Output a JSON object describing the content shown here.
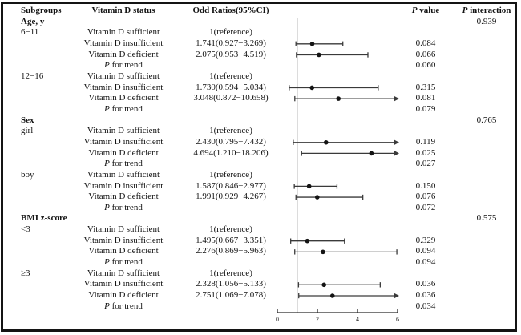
{
  "figure": {
    "columns": {
      "subgroups": "Subgroups",
      "status": "Vitamin D status",
      "odds_ratio": "Odd Ratios(95%CI)",
      "p_value": "P value",
      "p_interaction": "P interaction"
    },
    "rows": [
      {
        "subgroup": "Age, y",
        "group_header": true,
        "p_interaction": "0.939"
      },
      {
        "subgroup": "6−11",
        "status": "Vitamin D sufficient",
        "or_text": "1(reference)"
      },
      {
        "status": "Vitamin D insufficient",
        "or_text": "1.741(0.927−3.269)",
        "p_value": "0.084",
        "ci": {
          "or": 1.741,
          "lo": 0.927,
          "hi": 3.269,
          "arrow": false
        }
      },
      {
        "status": "Vitamin D deficient",
        "or_text": "2.075(0.953−4.519)",
        "p_value": "0.066",
        "ci": {
          "or": 2.075,
          "lo": 0.953,
          "hi": 4.519,
          "arrow": false
        }
      },
      {
        "status": "P for trend",
        "trend": true,
        "p_value": "0.060"
      },
      {
        "subgroup": "12−16",
        "status": "Vitamin D sufficient",
        "or_text": "1(reference)"
      },
      {
        "status": "Vitamin D insufficient",
        "or_text": "1.730(0.594−5.034)",
        "p_value": "0.315",
        "ci": {
          "or": 1.73,
          "lo": 0.594,
          "hi": 5.034,
          "arrow": false
        }
      },
      {
        "status": "Vitamin D deficient",
        "or_text": "3.048(0.872−10.658)",
        "p_value": "0.081",
        "ci": {
          "or": 3.048,
          "lo": 0.872,
          "hi": 10.658,
          "arrow": true
        }
      },
      {
        "status": "P for trend",
        "trend": true,
        "p_value": "0.079"
      },
      {
        "subgroup": "Sex",
        "group_header": true,
        "p_interaction": "0.765"
      },
      {
        "subgroup": "girl",
        "status": "Vitamin D sufficient",
        "or_text": "1(reference)"
      },
      {
        "status": "Vitamin D insufficient",
        "or_text": "2.430(0.795−7.432)",
        "p_value": "0.119",
        "ci": {
          "or": 2.43,
          "lo": 0.795,
          "hi": 7.432,
          "arrow": true
        }
      },
      {
        "status": "Vitamin D deficient",
        "or_text": "4.694(1.210−18.206)",
        "p_value": "0.025",
        "ci": {
          "or": 4.694,
          "lo": 1.21,
          "hi": 18.206,
          "arrow": true
        }
      },
      {
        "status": "P for trend",
        "trend": true,
        "p_value": "0.027"
      },
      {
        "subgroup": "boy",
        "status": "Vitamin D sufficient",
        "or_text": "1(reference)"
      },
      {
        "status": "Vitamin D insufficient",
        "or_text": "1.587(0.846−2.977)",
        "p_value": "0.150",
        "ci": {
          "or": 1.587,
          "lo": 0.846,
          "hi": 2.977,
          "arrow": false
        }
      },
      {
        "status": "Vitamin D deficient",
        "or_text": "1.991(0.929−4.267)",
        "p_value": "0.076",
        "ci": {
          "or": 1.991,
          "lo": 0.929,
          "hi": 4.267,
          "arrow": false
        }
      },
      {
        "status": "P for trend",
        "trend": true,
        "p_value": "0.072"
      },
      {
        "subgroup": "BMI z-score",
        "group_header": true,
        "p_interaction": "0.575"
      },
      {
        "subgroup": "<3",
        "status": "Vitamin D sufficient",
        "or_text": "1(reference)"
      },
      {
        "status": "Vitamin D insufficient",
        "or_text": "1.495(0.667−3.351)",
        "p_value": "0.329",
        "ci": {
          "or": 1.495,
          "lo": 0.667,
          "hi": 3.351,
          "arrow": false
        }
      },
      {
        "status": "Vitamin D deficient",
        "or_text": "2.276(0.869−5.963)",
        "p_value": "0.094",
        "ci": {
          "or": 2.276,
          "lo": 0.869,
          "hi": 5.963,
          "arrow": false
        }
      },
      {
        "status": "P for trend",
        "trend": true,
        "p_value": "0.094"
      },
      {
        "subgroup": "≥3",
        "status": "Vitamin D sufficient",
        "or_text": "1(reference)"
      },
      {
        "status": "Vitamin D insufficient",
        "or_text": "2.328(1.056−5.133)",
        "p_value": "0.036",
        "ci": {
          "or": 2.328,
          "lo": 1.056,
          "hi": 5.133,
          "arrow": false
        }
      },
      {
        "status": "Vitamin D deficient",
        "or_text": "2.751(1.069−7.078)",
        "p_value": "0.036",
        "ci": {
          "or": 2.751,
          "lo": 1.069,
          "hi": 7.078,
          "arrow": true
        }
      },
      {
        "status": "P for trend",
        "trend": true,
        "p_value": "0.034"
      }
    ]
  },
  "chart_data": {
    "type": "scatter",
    "subtype": "forest-plot",
    "title": "",
    "xlabel": "Odds Ratio",
    "axis": {
      "min": 0,
      "max": 6,
      "ticks": [
        0,
        2,
        4,
        6
      ]
    },
    "reference_line_x": 1,
    "legend": "none",
    "series": [
      {
        "name": "Age 6−11 / Vitamin D insufficient",
        "or": 1.741,
        "ci_low": 0.927,
        "ci_high": 3.269,
        "clipped_right": false
      },
      {
        "name": "Age 6−11 / Vitamin D deficient",
        "or": 2.075,
        "ci_low": 0.953,
        "ci_high": 4.519,
        "clipped_right": false
      },
      {
        "name": "Age 12−16 / Vitamin D insufficient",
        "or": 1.73,
        "ci_low": 0.594,
        "ci_high": 5.034,
        "clipped_right": false
      },
      {
        "name": "Age 12−16 / Vitamin D deficient",
        "or": 3.048,
        "ci_low": 0.872,
        "ci_high": 10.658,
        "clipped_right": true
      },
      {
        "name": "girl / Vitamin D insufficient",
        "or": 2.43,
        "ci_low": 0.795,
        "ci_high": 7.432,
        "clipped_right": true
      },
      {
        "name": "girl / Vitamin D deficient",
        "or": 4.694,
        "ci_low": 1.21,
        "ci_high": 18.206,
        "clipped_right": true
      },
      {
        "name": "boy / Vitamin D insufficient",
        "or": 1.587,
        "ci_low": 0.846,
        "ci_high": 2.977,
        "clipped_right": false
      },
      {
        "name": "boy / Vitamin D deficient",
        "or": 1.991,
        "ci_low": 0.929,
        "ci_high": 4.267,
        "clipped_right": false
      },
      {
        "name": "BMI <3 / Vitamin D insufficient",
        "or": 1.495,
        "ci_low": 0.667,
        "ci_high": 3.351,
        "clipped_right": false
      },
      {
        "name": "BMI <3 / Vitamin D deficient",
        "or": 2.276,
        "ci_low": 0.869,
        "ci_high": 5.963,
        "clipped_right": false
      },
      {
        "name": "BMI ≥3 / Vitamin D insufficient",
        "or": 2.328,
        "ci_low": 1.056,
        "ci_high": 5.133,
        "clipped_right": false
      },
      {
        "name": "BMI ≥3 / Vitamin D deficient",
        "or": 2.751,
        "ci_low": 1.069,
        "ci_high": 7.078,
        "clipped_right": true
      }
    ],
    "colors": {
      "marker": "#141414",
      "ci_line": "#3a3a3a",
      "reference_line": "#d4d4d4",
      "axis": "#2a2a2a"
    }
  }
}
